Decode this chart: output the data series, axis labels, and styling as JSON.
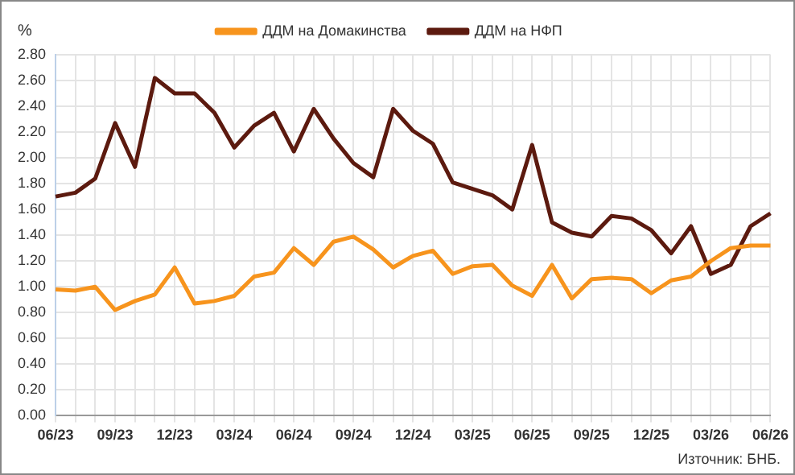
{
  "chart_data": {
    "type": "line",
    "ylabel": "%",
    "categories": [
      "06/23",
      null,
      null,
      "09/23",
      null,
      null,
      "12/23",
      null,
      null,
      "03/24",
      null,
      null,
      "06/24",
      null,
      null,
      "09/24",
      null,
      null,
      "12/24",
      null,
      null,
      "03/25",
      null,
      null,
      "06/25",
      null,
      null,
      "09/25",
      null,
      null,
      "12/25",
      null,
      null,
      "03/26",
      null,
      null,
      "06/26"
    ],
    "series": [
      {
        "name": "ДДМ на Домакинства",
        "color": "#f7941d",
        "values": [
          0.98,
          0.97,
          1.0,
          0.82,
          0.89,
          0.94,
          1.15,
          0.87,
          0.89,
          0.93,
          1.08,
          1.11,
          1.3,
          1.17,
          1.35,
          1.39,
          1.29,
          1.15,
          1.24,
          1.28,
          1.1,
          1.16,
          1.17,
          1.01,
          0.93,
          1.17,
          0.91,
          1.06,
          1.07,
          1.06,
          0.95,
          1.05,
          1.08,
          1.2,
          1.3,
          1.32,
          1.32
        ]
      },
      {
        "name": "ДДМ на НФП",
        "color": "#5c1a0f",
        "values": [
          1.7,
          1.73,
          1.84,
          2.27,
          1.93,
          2.62,
          2.5,
          2.5,
          2.35,
          2.08,
          2.25,
          2.35,
          2.05,
          2.38,
          2.15,
          1.96,
          1.85,
          2.38,
          2.21,
          2.11,
          1.81,
          1.76,
          1.71,
          1.6,
          2.1,
          1.5,
          1.42,
          1.39,
          1.55,
          1.53,
          1.44,
          1.26,
          1.47,
          1.1,
          1.17,
          1.47,
          1.57
        ]
      }
    ],
    "ylim": [
      0,
      2.8
    ],
    "yticks": [
      {
        "value": 0,
        "label": "0.00"
      },
      {
        "value": 0.2,
        "label": "0.20"
      },
      {
        "value": 0.4,
        "label": "0.40"
      },
      {
        "value": 0.6,
        "label": "0.60"
      },
      {
        "value": 0.8,
        "label": "0.80"
      },
      {
        "value": 1,
        "label": "1.00"
      },
      {
        "value": 1.2,
        "label": "1.20"
      },
      {
        "value": 1.4,
        "label": "1.40"
      },
      {
        "value": 1.6,
        "label": "1.60"
      },
      {
        "value": 1.8,
        "label": "1.80"
      },
      {
        "value": 2,
        "label": "2.00"
      },
      {
        "value": 2.2,
        "label": "2.20"
      },
      {
        "value": 2.4,
        "label": "2.40"
      },
      {
        "value": 2.6,
        "label": "2.60"
      },
      {
        "value": 2.8,
        "label": "2.80"
      }
    ],
    "grid": true,
    "legend": "top",
    "marker": "none",
    "line_style": "solid",
    "annotations": [
      "Източник: БНБ."
    ]
  }
}
